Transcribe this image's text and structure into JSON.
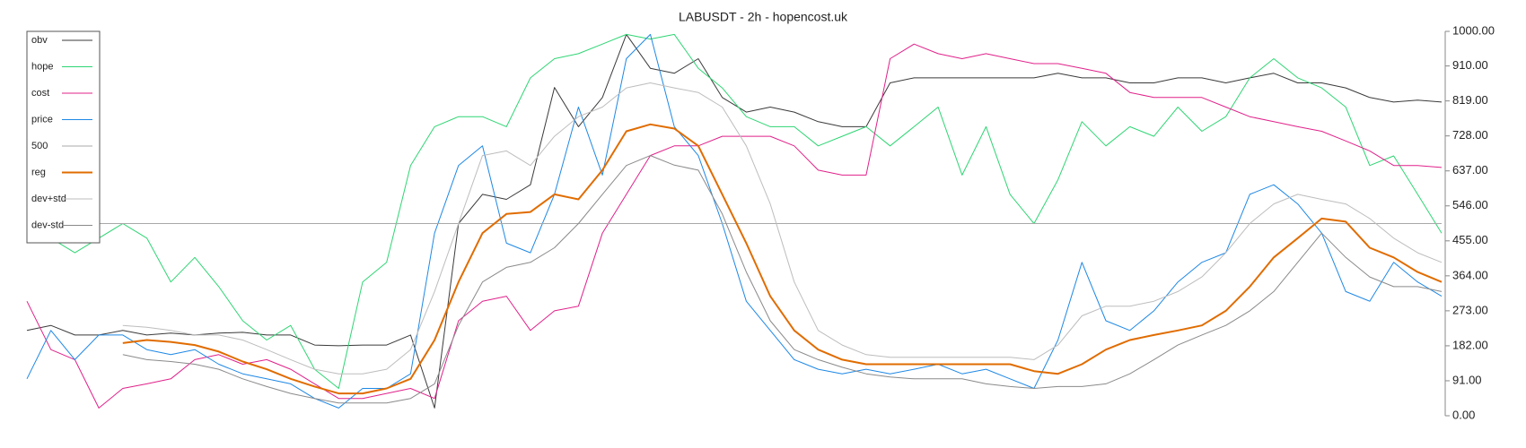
{
  "chart_data": {
    "type": "line",
    "title": "LABUSDT - 2h - hopencost.uk",
    "categories": [
      null,
      null,
      null,
      null,
      null,
      null,
      null,
      null,
      null,
      null,
      null,
      null,
      null,
      null,
      null,
      null,
      null,
      null,
      null,
      null,
      null,
      null,
      null,
      null,
      null,
      null,
      null,
      null,
      null,
      null,
      null,
      null,
      null,
      null,
      null,
      null,
      null,
      null,
      null,
      null,
      null,
      null,
      null,
      null,
      null,
      null,
      null,
      null,
      null,
      null,
      null,
      null,
      null,
      null,
      null,
      null,
      null,
      null,
      null,
      null
    ],
    "ylim": [
      0,
      1000
    ],
    "yticks": [
      {
        "value": 0,
        "label": "0.00"
      },
      {
        "value": 91,
        "label": "91.00"
      },
      {
        "value": 182,
        "label": "182.00"
      },
      {
        "value": 273,
        "label": "273.00"
      },
      {
        "value": 364,
        "label": "364.00"
      },
      {
        "value": 455,
        "label": "455.00"
      },
      {
        "value": 546,
        "label": "546.00"
      },
      {
        "value": 637,
        "label": "637.00"
      },
      {
        "value": 728,
        "label": "728.00"
      },
      {
        "value": 819,
        "label": "819.00"
      },
      {
        "value": 910,
        "label": "910.00"
      },
      {
        "value": 1000,
        "label": "1000.00"
      }
    ],
    "legend": "top-left",
    "series": [
      {
        "name": "obv",
        "color": "#3a3a3a",
        "values": [
          222,
          235,
          210,
          210,
          222,
          210,
          215,
          210,
          215,
          217,
          210,
          210,
          184,
          182,
          184,
          184,
          210,
          20,
          500,
          576,
          563,
          601,
          854,
          752,
          828,
          992,
          904,
          891,
          929,
          828,
          790,
          803,
          790,
          765,
          752,
          752,
          866,
          879,
          879,
          879,
          879,
          879,
          879,
          891,
          879,
          879,
          866,
          866,
          879,
          879,
          866,
          879,
          891,
          866,
          866,
          853,
          828,
          816,
          821,
          816
        ]
      },
      {
        "name": "hope",
        "color": "#2ed573",
        "values": [
          475,
          462,
          424,
          462,
          500,
          462,
          348,
          412,
          336,
          247,
          197,
          235,
          121,
          71,
          348,
          399,
          651,
          752,
          778,
          778,
          752,
          879,
          929,
          942,
          967,
          992,
          980,
          992,
          904,
          853,
          778,
          752,
          752,
          702,
          727,
          752,
          702,
          752,
          803,
          626,
          752,
          576,
          500,
          614,
          765,
          702,
          752,
          727,
          803,
          740,
          778,
          879,
          929,
          879,
          853,
          803,
          651,
          676,
          576,
          475
        ]
      },
      {
        "name": "cost",
        "color": "#e0218a",
        "values": [
          298,
          172,
          146,
          20,
          71,
          83,
          96,
          146,
          159,
          134,
          146,
          121,
          83,
          45,
          45,
          58,
          71,
          45,
          247,
          298,
          311,
          222,
          273,
          285,
          475,
          576,
          677,
          702,
          702,
          727,
          727,
          727,
          702,
          639,
          626,
          626,
          929,
          967,
          942,
          929,
          942,
          929,
          916,
          916,
          904,
          891,
          841,
          828,
          828,
          828,
          803,
          778,
          765,
          752,
          740,
          715,
          689,
          651,
          651,
          646
        ]
      },
      {
        "name": "price",
        "color": "#1e88e5",
        "values": [
          96,
          222,
          146,
          210,
          210,
          172,
          159,
          172,
          134,
          109,
          96,
          83,
          45,
          20,
          71,
          71,
          109,
          475,
          651,
          702,
          449,
          424,
          576,
          803,
          626,
          929,
          992,
          752,
          677,
          500,
          298,
          222,
          146,
          121,
          109,
          121,
          109,
          121,
          134,
          109,
          121,
          96,
          71,
          197,
          399,
          247,
          222,
          273,
          348,
          399,
          424,
          576,
          601,
          551,
          475,
          323,
          298,
          399,
          348,
          311
        ]
      },
      {
        "name": "500",
        "color": "#a8a8a8",
        "values": [
          500,
          500,
          500,
          500,
          500,
          500,
          500,
          500,
          500,
          500,
          500,
          500,
          500,
          500,
          500,
          500,
          500,
          500,
          500,
          500,
          500,
          500,
          500,
          500,
          500,
          500,
          500,
          500,
          500,
          500,
          500,
          500,
          500,
          500,
          500,
          500,
          500,
          500,
          500,
          500,
          500,
          500,
          500,
          500,
          500,
          500,
          500,
          500,
          500,
          500,
          500,
          500,
          500,
          500,
          500,
          500,
          500,
          500,
          500,
          500
        ]
      },
      {
        "name": "reg",
        "color": "#e06c00",
        "width": 2,
        "values": [
          null,
          null,
          null,
          null,
          189,
          197,
          192,
          184,
          167,
          141,
          121,
          96,
          76,
          58,
          58,
          71,
          96,
          197,
          348,
          475,
          525,
          530,
          576,
          563,
          639,
          740,
          758,
          747,
          702,
          576,
          449,
          311,
          222,
          172,
          146,
          134,
          134,
          134,
          134,
          134,
          134,
          134,
          116,
          109,
          134,
          172,
          197,
          210,
          222,
          235,
          273,
          336,
          412,
          462,
          513,
          505,
          437,
          412,
          374,
          348
        ]
      },
      {
        "name": "dev+std",
        "color": "#bdbdbd",
        "values": [
          null,
          null,
          null,
          null,
          235,
          230,
          222,
          210,
          210,
          197,
          172,
          146,
          121,
          109,
          109,
          121,
          172,
          323,
          500,
          677,
          689,
          651,
          727,
          778,
          803,
          853,
          866,
          853,
          841,
          803,
          702,
          551,
          348,
          222,
          184,
          159,
          152,
          152,
          152,
          152,
          152,
          152,
          146,
          184,
          260,
          285,
          285,
          298,
          323,
          361,
          424,
          500,
          551,
          576,
          563,
          551,
          513,
          462,
          424,
          399
        ]
      },
      {
        "name": "dev-std",
        "color": "#8a8a8a",
        "values": [
          null,
          null,
          null,
          null,
          159,
          146,
          141,
          134,
          121,
          96,
          76,
          58,
          45,
          33,
          33,
          33,
          45,
          83,
          235,
          348,
          386,
          399,
          437,
          500,
          576,
          651,
          677,
          652,
          639,
          525,
          374,
          247,
          172,
          146,
          126,
          109,
          101,
          96,
          96,
          96,
          83,
          76,
          71,
          76,
          76,
          83,
          109,
          146,
          184,
          210,
          235,
          273,
          323,
          399,
          475,
          412,
          361,
          336,
          336,
          323
        ]
      }
    ]
  }
}
